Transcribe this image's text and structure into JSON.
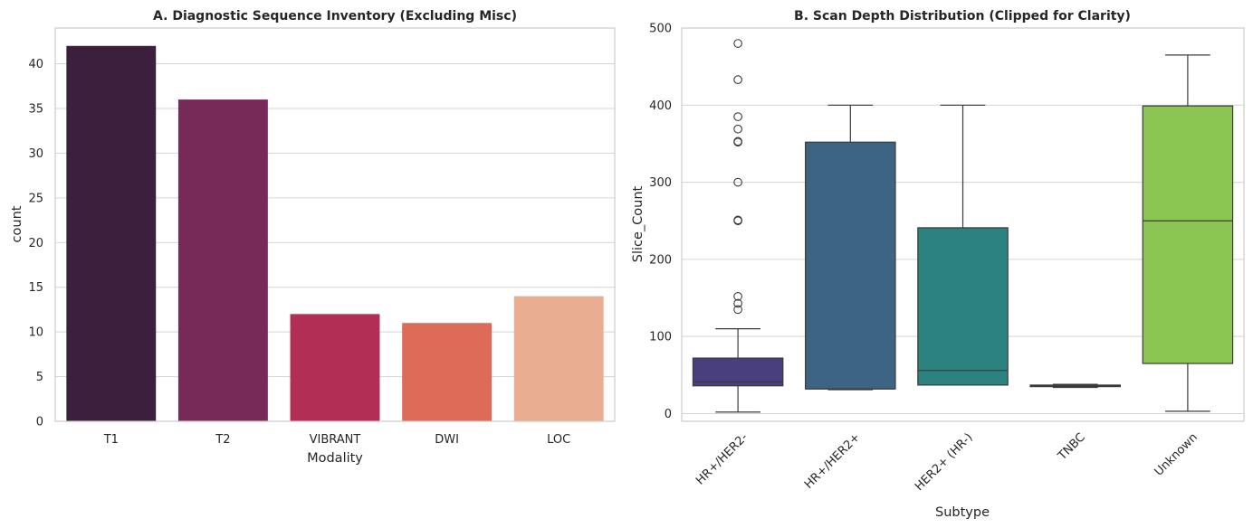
{
  "chart_data": [
    {
      "type": "bar",
      "title": "A. Diagnostic Sequence Inventory (Excluding Misc)",
      "xlabel": "Modality",
      "ylabel": "count",
      "categories": [
        "T1",
        "T2",
        "VIBRANT",
        "DWI",
        "LOC"
      ],
      "values": [
        42,
        36,
        12,
        11,
        14
      ],
      "colors": [
        "#3b1f3c",
        "#772a58",
        "#b22e55",
        "#dc6c57",
        "#e9ad92"
      ],
      "ylim": [
        0,
        44
      ],
      "yticks": [
        0,
        5,
        10,
        15,
        20,
        25,
        30,
        35,
        40
      ],
      "grid": "horizontal"
    },
    {
      "type": "box",
      "title": "B. Scan Depth Distribution (Clipped for Clarity)",
      "xlabel": "Subtype",
      "ylabel": "Slice_Count",
      "categories": [
        "HR+/HER2-",
        "HR+/HER2+",
        "HER2+ (HR-)",
        "TNBC",
        "Unknown"
      ],
      "boxes": [
        {
          "whisker_low": 2,
          "q1": 36,
          "median": 41,
          "q3": 72,
          "whisker_high": 110,
          "outliers": [
            135,
            143,
            152,
            250,
            251,
            300,
            352,
            353,
            369,
            385,
            433,
            480
          ]
        },
        {
          "whisker_low": 31,
          "q1": 32,
          "median": 32,
          "q3": 352,
          "whisker_high": 400,
          "outliers": []
        },
        {
          "whisker_low": 37,
          "q1": 37,
          "median": 56,
          "q3": 241,
          "whisker_high": 400,
          "outliers": []
        },
        {
          "whisker_low": 34,
          "q1": 35,
          "median": 36,
          "q3": 37,
          "whisker_high": 38,
          "outliers": []
        },
        {
          "whisker_low": 3,
          "q1": 65,
          "median": 250,
          "q3": 399,
          "whisker_high": 465,
          "outliers": []
        }
      ],
      "colors": [
        "#4a3f7e",
        "#3d6583",
        "#2b827f",
        "#4bad76",
        "#8cc652"
      ],
      "ylim": [
        -10,
        500
      ],
      "yticks": [
        0,
        100,
        200,
        300,
        400,
        500
      ],
      "xtick_rotation": 45,
      "grid": "horizontal"
    }
  ]
}
